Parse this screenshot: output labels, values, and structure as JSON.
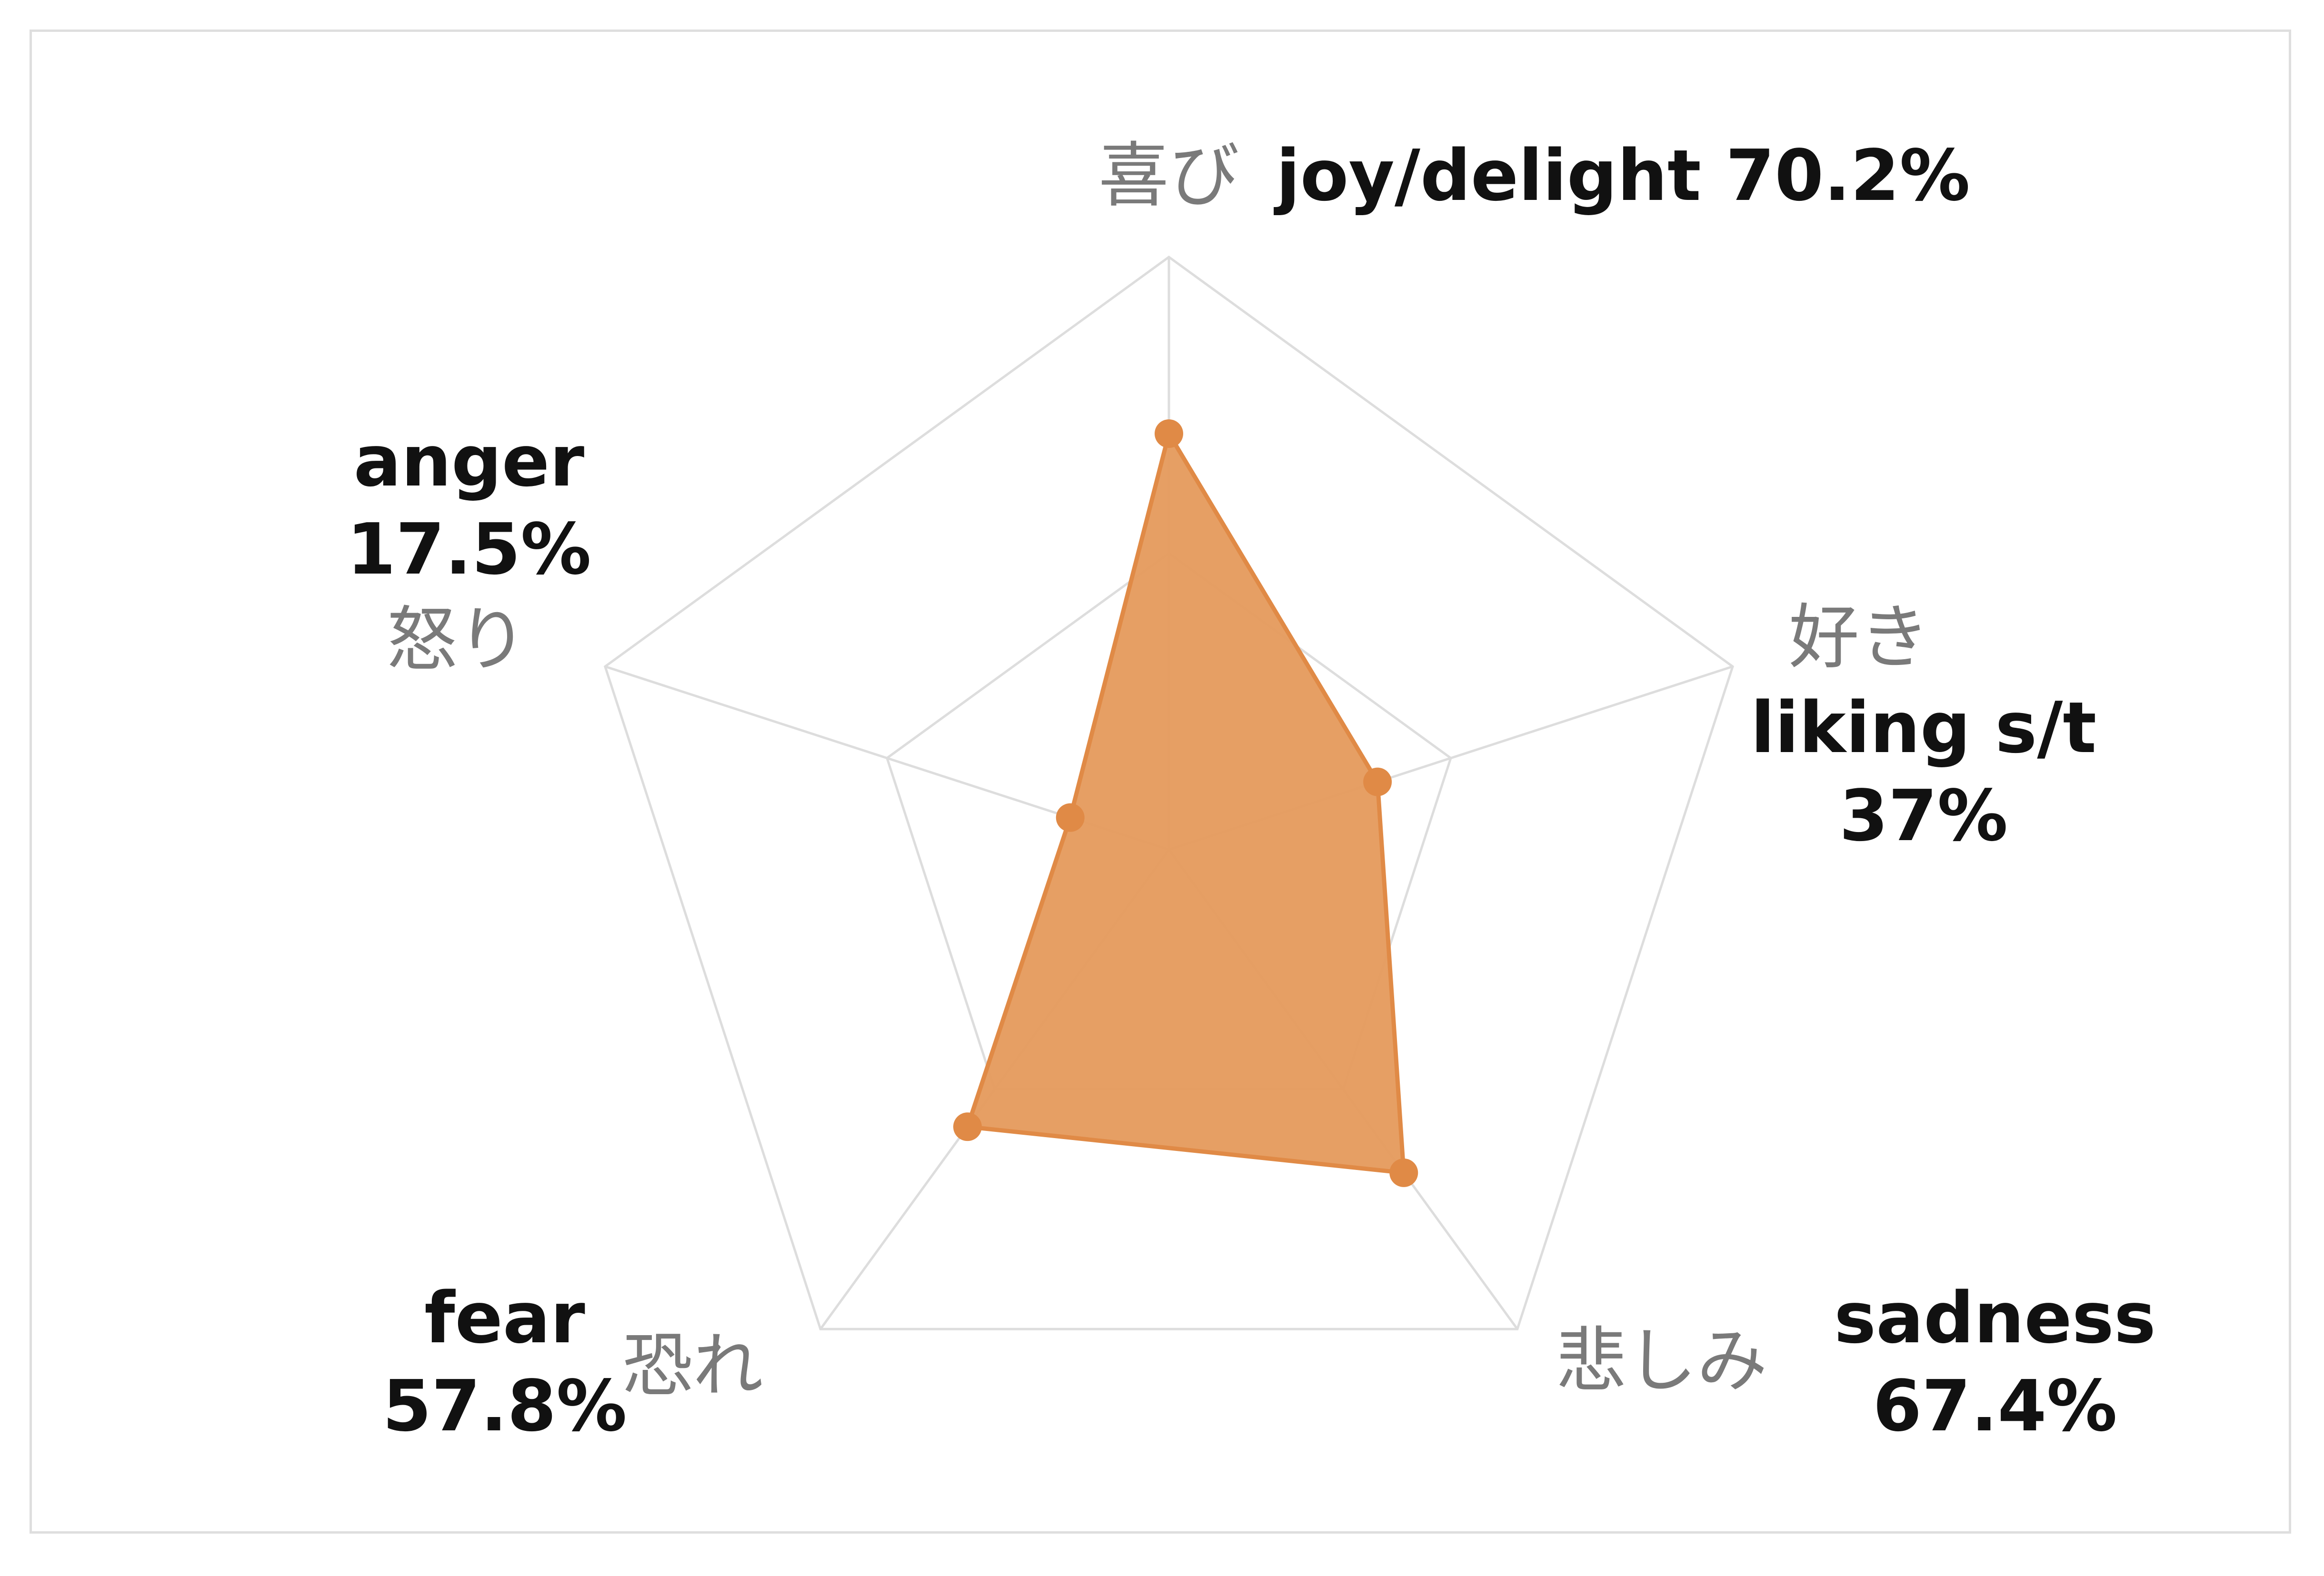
{
  "chart_data": {
    "type": "radar",
    "axes": [
      {
        "key": "joy",
        "jp": "喜び",
        "en_lines": [
          "joy/delight 70.2%"
        ],
        "value": 70.2
      },
      {
        "key": "liking",
        "jp": "好き",
        "en_lines": [
          "liking s/t",
          "37%"
        ],
        "value": 37
      },
      {
        "key": "sadness",
        "jp": "悲しみ",
        "en_lines": [
          "sadness",
          "67.4%"
        ],
        "value": 67.4
      },
      {
        "key": "fear",
        "jp": "恐れ",
        "en_lines": [
          "fear",
          "57.8%"
        ],
        "value": 57.8
      },
      {
        "key": "anger",
        "jp": "怒り",
        "en_lines": [
          "anger",
          "17.5%"
        ],
        "value": 17.5
      }
    ],
    "range": [
      0,
      100
    ],
    "grid_levels": [
      50,
      100
    ],
    "fill_color": "#e59a5c",
    "line_color": "#e08a46",
    "grid_color": "#dddddd"
  }
}
